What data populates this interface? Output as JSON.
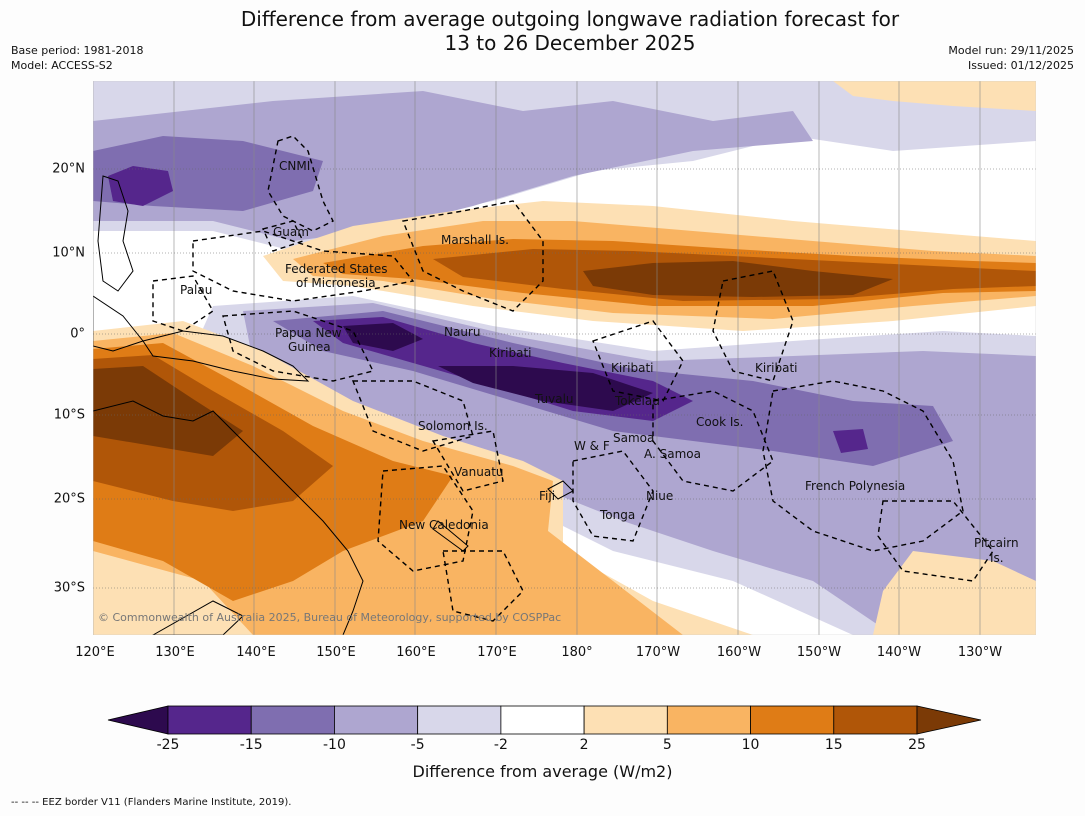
{
  "title": {
    "line1": "Difference from average outgoing longwave radiation forecast for",
    "line2": "13 to 26 December 2025"
  },
  "meta": {
    "base_period": "Base period: 1981-2018",
    "model": "Model: ACCESS-S2",
    "model_run": "Model run: 29/11/2025",
    "issued": "Issued: 01/12/2025"
  },
  "axes": {
    "x_labels": [
      "120°E",
      "130°E",
      "140°E",
      "150°E",
      "160°E",
      "170°E",
      "180°",
      "170°W",
      "160°W",
      "150°W",
      "140°W",
      "130°W"
    ],
    "y_labels": [
      "20°N",
      "10°N",
      "0°",
      "10°S",
      "20°S",
      "30°S"
    ]
  },
  "places": {
    "cnmi": "CNMI",
    "guam": "Guam",
    "marshall": "Marshall Is.",
    "fsm_1": "Federated States",
    "fsm_2": "of Micronesia",
    "palau": "Palau",
    "png_1": "Papua New",
    "png_2": "Guinea",
    "nauru": "Nauru",
    "kiribati_w": "Kiribati",
    "kiribati_c": "Kiribati",
    "kiribati_e": "Kiribati",
    "tuvalu": "Tuvalu",
    "tokelau": "Tokelau",
    "solomon": "Solomon Is.",
    "samoa": "Samoa",
    "wf": "W & F",
    "asamoa": "A. Samoa",
    "cook": "Cook Is.",
    "vanuatu": "Vanuatu",
    "fiji": "Fiji",
    "niue": "Niue",
    "tonga": "Tonga",
    "newcal": "New Caledonia",
    "fpoly": "French Polynesia",
    "pitcairn_1": "Pitcairn",
    "pitcairn_2": "Is."
  },
  "copyright": "© Commonwealth of Australia 2025, Bureau of Meteorology, supported by COSPPac",
  "legend": {
    "ticks": [
      "-25",
      "-15",
      "-10",
      "-5",
      "-2",
      "2",
      "5",
      "10",
      "15",
      "25"
    ],
    "colors": [
      "#2d0a4e",
      "#55268c",
      "#7f6eb0",
      "#aea6d0",
      "#d8d7ea",
      "#ffffff",
      "#fde0b4",
      "#f9b462",
      "#df7c16",
      "#b05608",
      "#7b3a06"
    ],
    "label": "Difference from average (W/m2)"
  },
  "footer": "--  --  -- EEZ border V11 (Flanders Marine Institute, 2019)."
}
